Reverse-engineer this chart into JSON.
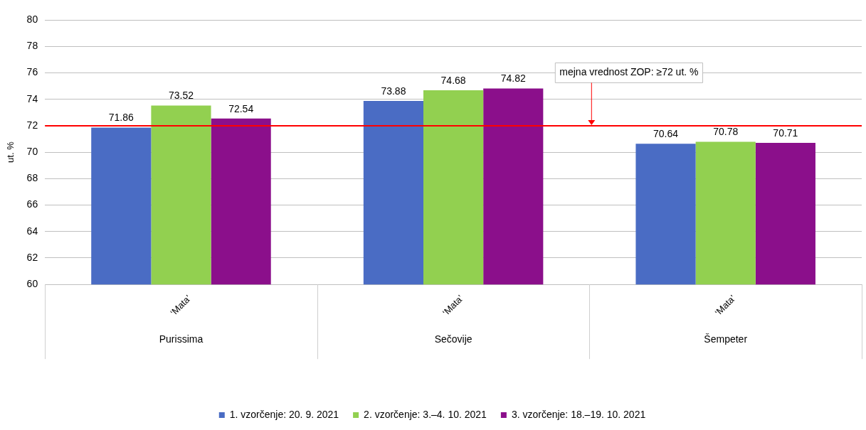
{
  "chart_data": {
    "type": "bar",
    "ylabel": "ut. %",
    "categories": [
      "Purissima",
      "Sečovije",
      "Šempeter"
    ],
    "series": [
      {
        "name": "1. vzorčenje: 20. 9. 2021",
        "color": "#4a6cc4",
        "values": [
          71.86,
          73.88,
          70.64
        ]
      },
      {
        "name": "2. vzorčenje: 3.–4. 10. 2021",
        "color": "#92d050",
        "values": [
          73.52,
          74.68,
          70.78
        ]
      },
      {
        "name": "3. vzorčenje: 18.–19. 10. 2021",
        "color": "#8b0f8b",
        "values": [
          72.54,
          74.82,
          70.71
        ]
      }
    ],
    "ylim": [
      60,
      80
    ],
    "yticks": [
      60,
      62,
      64,
      66,
      68,
      70,
      72,
      74,
      76,
      78,
      80
    ],
    "grid": "y",
    "legend": "bottom",
    "data_labels": true,
    "ref_lines": [
      {
        "axis": "y",
        "value": 72,
        "label": "mejna vrednost ZOP: ≥72 ut. %",
        "color": "#ff0000"
      }
    ],
    "annotations": [
      "‘Mata’",
      "‘Mata’",
      "‘Mata’"
    ]
  }
}
